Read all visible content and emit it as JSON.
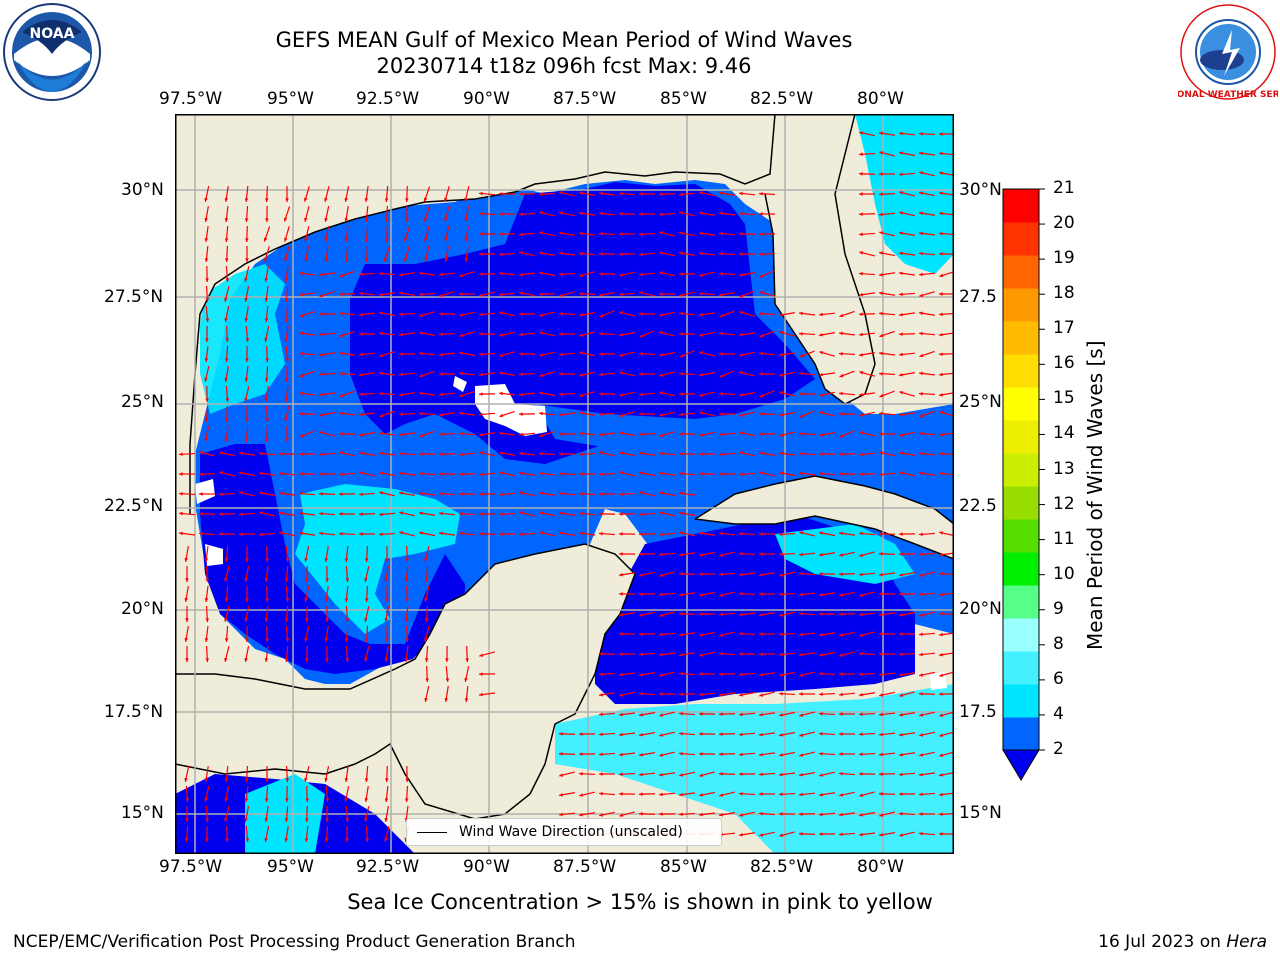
{
  "title": {
    "line1": "GEFS MEAN Gulf of Mexico Mean Period of Wind Waves",
    "line2": "20230714 t18z 096h fcst   Max: 9.46"
  },
  "map": {
    "lon_ticks": [
      "97.5°W",
      "95°W",
      "92.5°W",
      "90°W",
      "87.5°W",
      "85°W",
      "82.5°W",
      "80°W"
    ],
    "lat_ticks_left": [
      "30°N",
      "27.5°N",
      "25°N",
      "22.5°N",
      "20°N",
      "17.5°N",
      "15°N"
    ],
    "lat_ticks_right": [
      "30°N",
      "27.5",
      "25°N",
      "22.5",
      "20°N",
      "17.5",
      "15°N"
    ],
    "land_color": "#efedda",
    "arrow_color": "#ff0000",
    "legend_label": "Wind Wave Direction (unscaled)"
  },
  "colorbar": {
    "label": "Mean Period of Wind Waves [s]",
    "ticks": [
      "2",
      "4",
      "6",
      "8",
      "9",
      "10",
      "11",
      "12",
      "13",
      "14",
      "15",
      "16",
      "17",
      "18",
      "19",
      "20",
      "21"
    ],
    "colors": [
      "#0066ff",
      "#00e5ff",
      "#44f0ff",
      "#99ffff",
      "#55ff88",
      "#00ee00",
      "#55dd00",
      "#99dd00",
      "#ccee00",
      "#eeee00",
      "#ffff00",
      "#ffdd00",
      "#ffbb00",
      "#ff9900",
      "#ff6600",
      "#ff3300",
      "#ff0000"
    ],
    "under_color": "#0000ee"
  },
  "caption": "Sea Ice Concentration > 15% is shown in pink to yellow",
  "footer": {
    "left": "NCEP/EMC/Verification Post Processing Product Generation Branch",
    "right_prefix": "16 Jul 2023 on ",
    "right_host": "Hera"
  },
  "logos": {
    "left_text": "NOAA",
    "right_text": "NATIONAL WEATHER SERVICE"
  }
}
